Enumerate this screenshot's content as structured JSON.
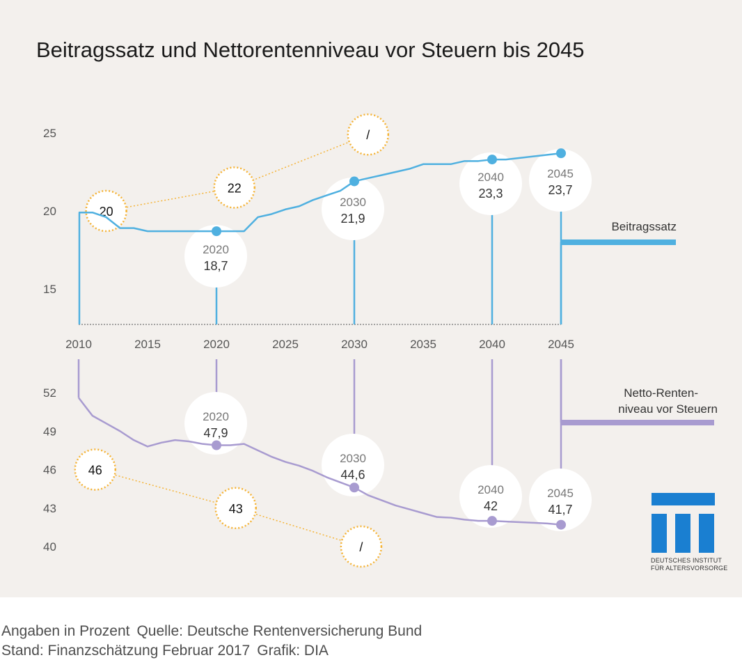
{
  "chart_data": {
    "type": "line",
    "title": "Beitragssatz und Nettorentenniveau vor Steuern bis 2045",
    "x_ticks": [
      "2010",
      "2015",
      "2020",
      "2025",
      "2030",
      "2035",
      "2040",
      "2045"
    ],
    "x_range": [
      2010,
      2045
    ],
    "highlight_years": [
      2020,
      2030,
      2040,
      2045
    ],
    "series": [
      {
        "name": "Beitragssatz",
        "name_lines": [
          "Beitragssatz"
        ],
        "color": "#4fb0e0",
        "y_ticks": [
          "25",
          "20",
          "15"
        ],
        "ylim": [
          12.5,
          27.5
        ],
        "points": [
          [
            2010,
            19.9
          ],
          [
            2011,
            19.9
          ],
          [
            2012,
            19.6
          ],
          [
            2013,
            18.9
          ],
          [
            2014,
            18.9
          ],
          [
            2015,
            18.7
          ],
          [
            2016,
            18.7
          ],
          [
            2017,
            18.7
          ],
          [
            2018,
            18.7
          ],
          [
            2019,
            18.7
          ],
          [
            2020,
            18.7
          ],
          [
            2021,
            18.7
          ],
          [
            2022,
            18.7
          ],
          [
            2023,
            19.6
          ],
          [
            2024,
            19.8
          ],
          [
            2025,
            20.1
          ],
          [
            2026,
            20.3
          ],
          [
            2027,
            20.7
          ],
          [
            2028,
            21.0
          ],
          [
            2029,
            21.3
          ],
          [
            2030,
            21.9
          ],
          [
            2031,
            22.1
          ],
          [
            2032,
            22.3
          ],
          [
            2033,
            22.5
          ],
          [
            2034,
            22.7
          ],
          [
            2035,
            23.0
          ],
          [
            2036,
            23.0
          ],
          [
            2037,
            23.0
          ],
          [
            2038,
            23.2
          ],
          [
            2039,
            23.2
          ],
          [
            2040,
            23.3
          ],
          [
            2041,
            23.3
          ],
          [
            2042,
            23.4
          ],
          [
            2043,
            23.5
          ],
          [
            2044,
            23.6
          ],
          [
            2045,
            23.7
          ]
        ],
        "labels": [
          {
            "year": "2020",
            "value": "18,7"
          },
          {
            "year": "2030",
            "value": "21,9"
          },
          {
            "year": "2040",
            "value": "23,3"
          },
          {
            "year": "2045",
            "value": "23,7"
          }
        ],
        "targets": [
          {
            "x": 2012,
            "y": 20,
            "label": "20"
          },
          {
            "x": 2021.3,
            "y": 21.5,
            "label": "22"
          },
          {
            "x": 2031,
            "y": 24.9,
            "label": "/"
          }
        ]
      },
      {
        "name": "Netto-Renten-niveau vor Steuern",
        "name_lines": [
          "Netto-Renten-",
          "niveau vor Steuern"
        ],
        "color": "#a89bd0",
        "y_ticks": [
          "52",
          "49",
          "46",
          "43",
          "40"
        ],
        "ylim": [
          40,
          52
        ],
        "points": [
          [
            2010,
            51.6
          ],
          [
            2011,
            50.2
          ],
          [
            2012,
            49.6
          ],
          [
            2013,
            49.0
          ],
          [
            2014,
            48.3
          ],
          [
            2015,
            47.8
          ],
          [
            2016,
            48.1
          ],
          [
            2017,
            48.3
          ],
          [
            2018,
            48.2
          ],
          [
            2019,
            48.0
          ],
          [
            2020,
            47.9
          ],
          [
            2021,
            47.9
          ],
          [
            2022,
            48.0
          ],
          [
            2023,
            47.5
          ],
          [
            2024,
            47.0
          ],
          [
            2025,
            46.6
          ],
          [
            2026,
            46.3
          ],
          [
            2027,
            45.9
          ],
          [
            2028,
            45.4
          ],
          [
            2029,
            45.0
          ],
          [
            2030,
            44.6
          ],
          [
            2031,
            44.0
          ],
          [
            2032,
            43.6
          ],
          [
            2033,
            43.2
          ],
          [
            2034,
            42.9
          ],
          [
            2035,
            42.6
          ],
          [
            2036,
            42.3
          ],
          [
            2037,
            42.25
          ],
          [
            2038,
            42.1
          ],
          [
            2039,
            42.0
          ],
          [
            2040,
            42.0
          ],
          [
            2041,
            41.95
          ],
          [
            2042,
            41.9
          ],
          [
            2043,
            41.85
          ],
          [
            2044,
            41.8
          ],
          [
            2045,
            41.7
          ]
        ],
        "labels": [
          {
            "year": "2020",
            "value": "47,9"
          },
          {
            "year": "2030",
            "value": "44,6"
          },
          {
            "year": "2040",
            "value": "42"
          },
          {
            "year": "2045",
            "value": "41,7"
          }
        ],
        "targets": [
          {
            "x": 2011.2,
            "y": 46,
            "label": "46"
          },
          {
            "x": 2021.4,
            "y": 43,
            "label": "43"
          },
          {
            "x": 2030.5,
            "y": 40,
            "label": "/"
          }
        ]
      }
    ]
  },
  "logo": {
    "line1": "DEUTSCHES INSTITUT",
    "line2": "FÜR ALTERSVORSORGE"
  },
  "footer": {
    "units": "Angaben in Prozent",
    "source": "Quelle: Deutsche Rentenversicherung Bund",
    "status": "Stand: Finanzschätzung Februar 2017",
    "credit": "Grafik: DIA"
  }
}
